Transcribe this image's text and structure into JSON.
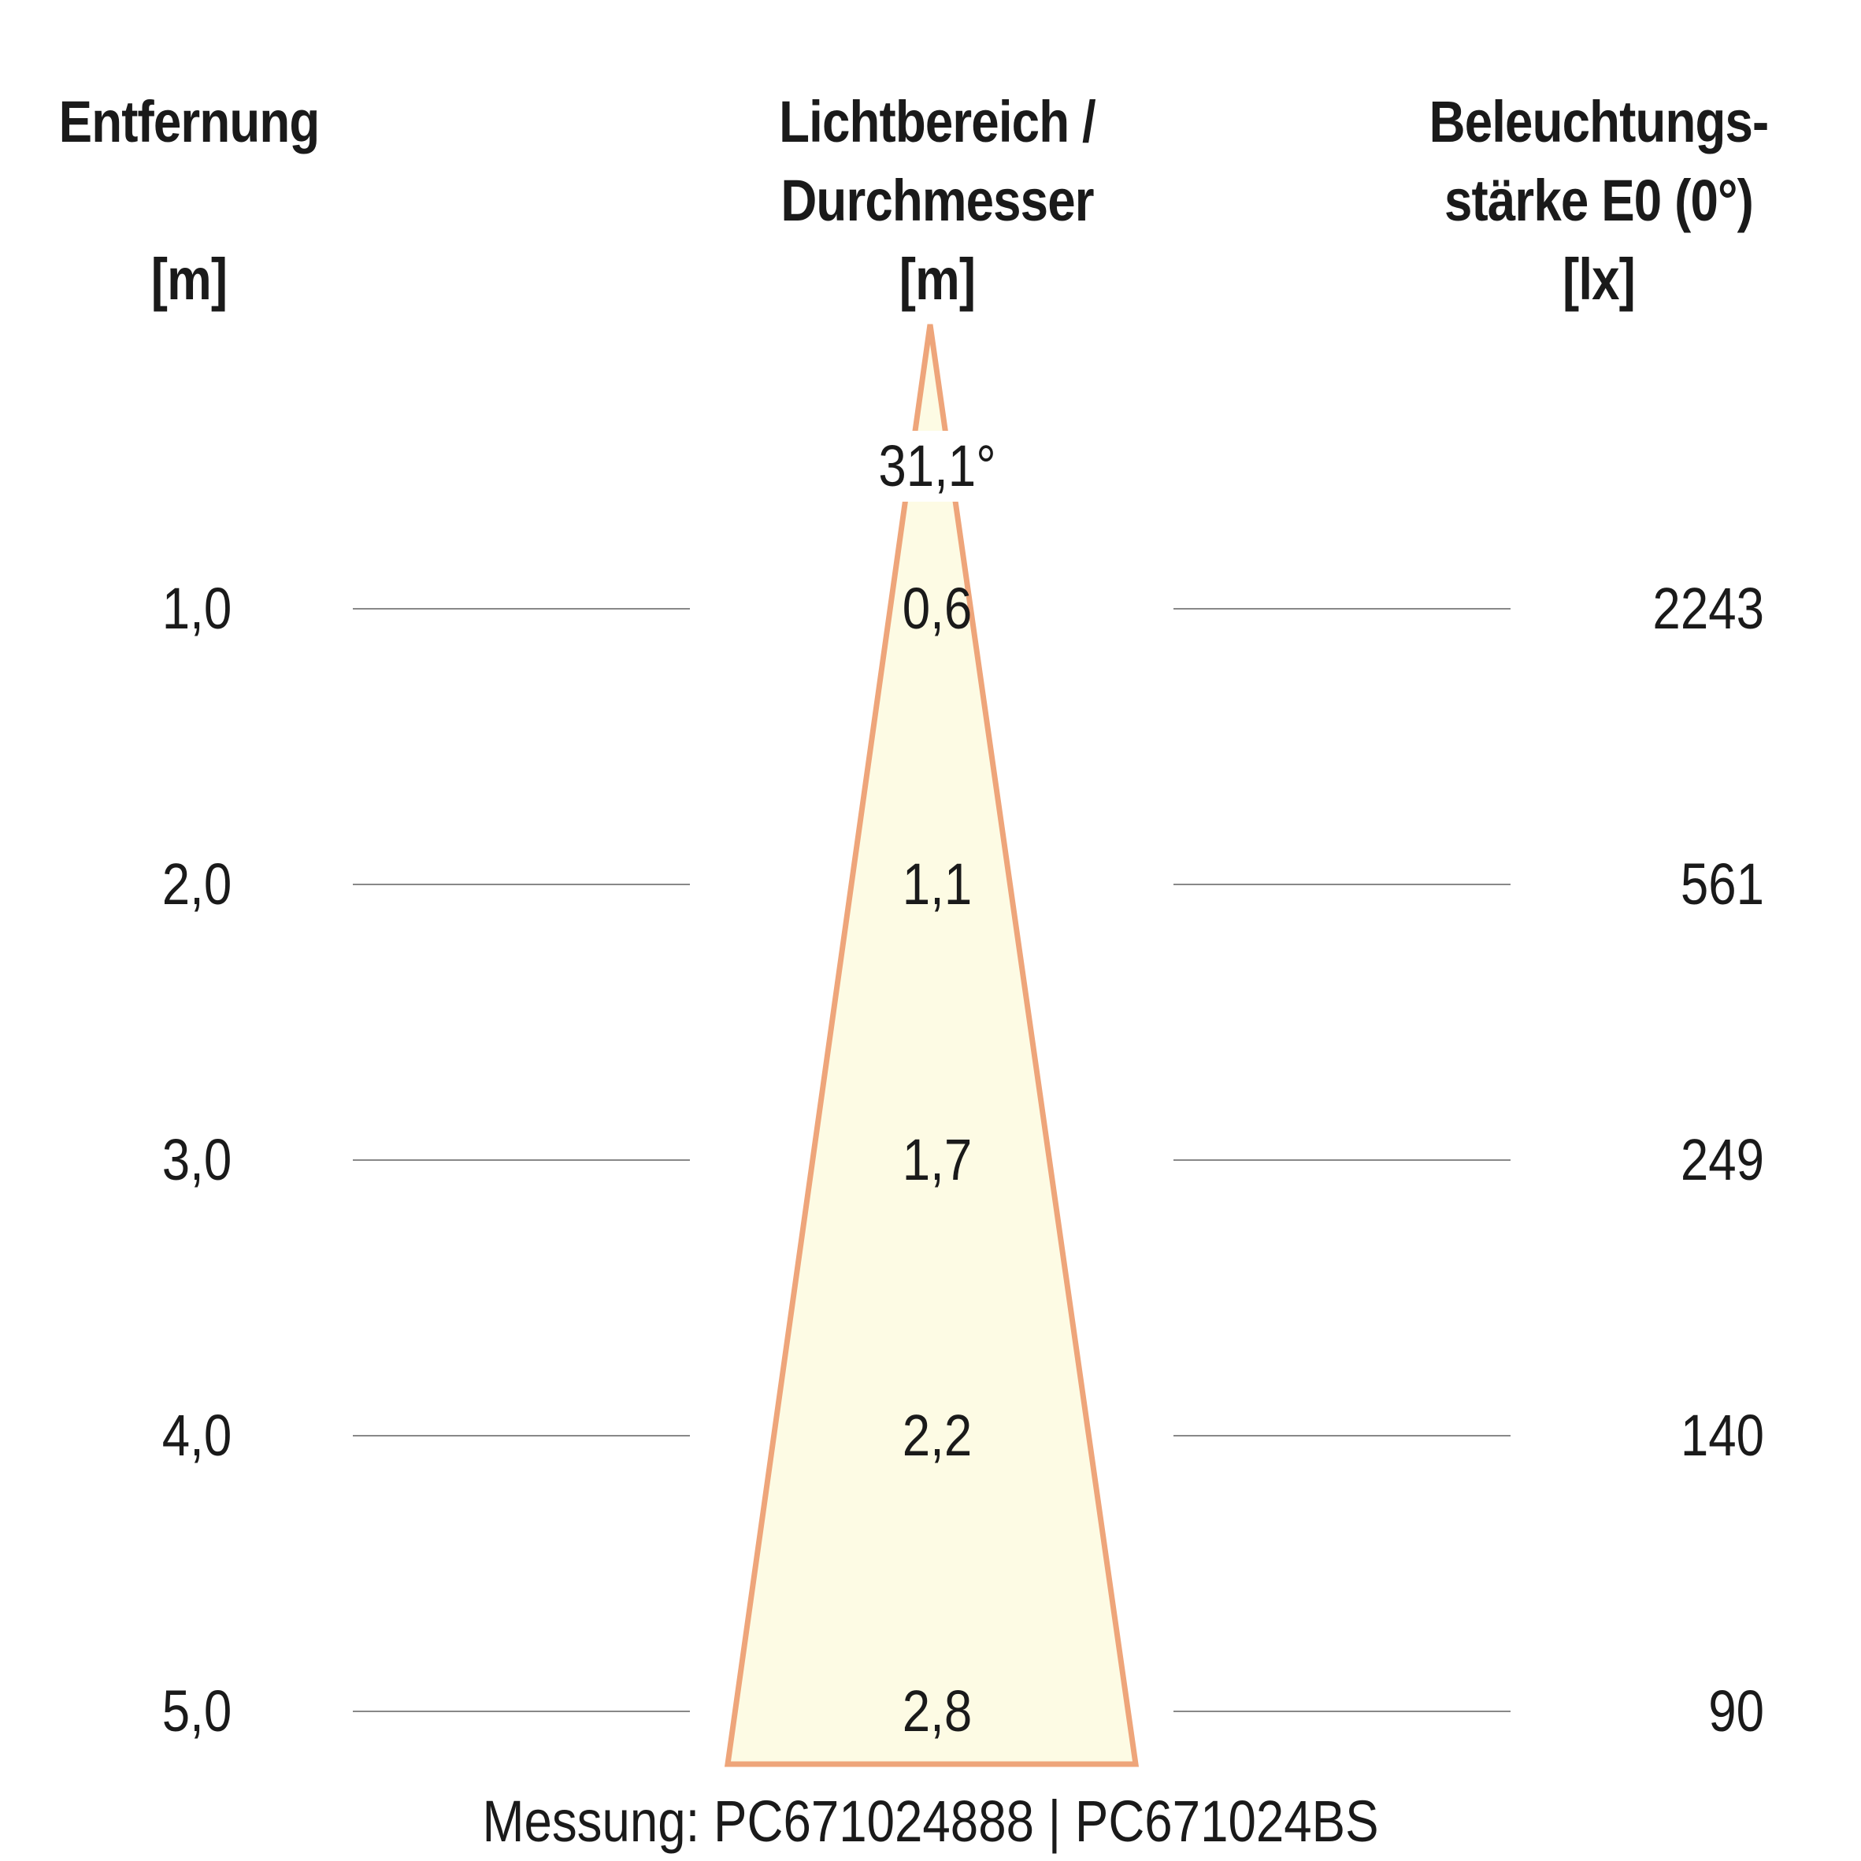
{
  "headers": {
    "distance": [
      "Entfernung",
      "",
      "[m]"
    ],
    "diameter": [
      "Lichtbereich /",
      "Durchmesser",
      "[m]"
    ],
    "illuminance": [
      "Beleuchtungs-",
      "stärke E0 (0°)",
      "[lx]"
    ]
  },
  "beam_angle": "31,1°",
  "rows": [
    {
      "distance": "1,0",
      "diameter": "0,6",
      "illuminance": "2243"
    },
    {
      "distance": "2,0",
      "diameter": "1,1",
      "illuminance": "561"
    },
    {
      "distance": "3,0",
      "diameter": "1,7",
      "illuminance": "249"
    },
    {
      "distance": "4,0",
      "diameter": "2,2",
      "illuminance": "140"
    },
    {
      "distance": "5,0",
      "diameter": "2,8",
      "illuminance": "90"
    }
  ],
  "footer": "Messung: PC671024888 | PC671024BS",
  "colors": {
    "cone_fill": "#fdfbe4",
    "cone_stroke": "#eea57a",
    "guide_line": "#888888",
    "text": "#1a1a1a"
  }
}
